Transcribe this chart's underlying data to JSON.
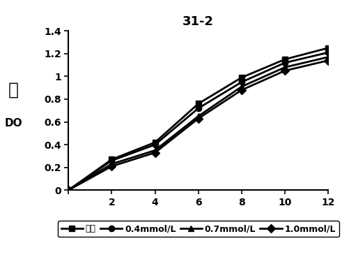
{
  "title": "31-2",
  "x": [
    0,
    2,
    4,
    6,
    8,
    10,
    12
  ],
  "series": {
    "空白": [
      0,
      0.27,
      0.42,
      0.76,
      0.99,
      1.15,
      1.25
    ],
    "0.4mmol/L": [
      0,
      0.26,
      0.4,
      0.72,
      0.95,
      1.12,
      1.21
    ],
    "0.7mmol/L": [
      0,
      0.23,
      0.35,
      0.65,
      0.91,
      1.08,
      1.17
    ],
    "1.0mmol/L": [
      0,
      0.21,
      0.33,
      0.63,
      0.88,
      1.05,
      1.14
    ]
  },
  "markers": [
    "s",
    "o",
    "^",
    "D"
  ],
  "legend_labels": [
    "空白",
    "0.4mmol/L",
    "0.7mmol/L",
    "1.0mmol/L"
  ],
  "xlim": [
    0,
    12
  ],
  "ylim": [
    0,
    1.4
  ],
  "yticks": [
    0,
    0.2,
    0.4,
    0.6,
    0.8,
    1.0,
    1.2,
    1.4
  ],
  "ytick_labels": [
    "0",
    "0.2",
    "0.4",
    "0.6",
    "0.8",
    "1",
    "1.2",
    "1.4"
  ],
  "xticks": [
    0,
    2,
    4,
    6,
    8,
    10,
    12
  ],
  "xtick_labels": [
    "",
    "2",
    "4",
    "6",
    "8",
    "10",
    "12"
  ],
  "title_fontsize": 13,
  "tick_fontsize": 10,
  "legend_fontsize": 9
}
